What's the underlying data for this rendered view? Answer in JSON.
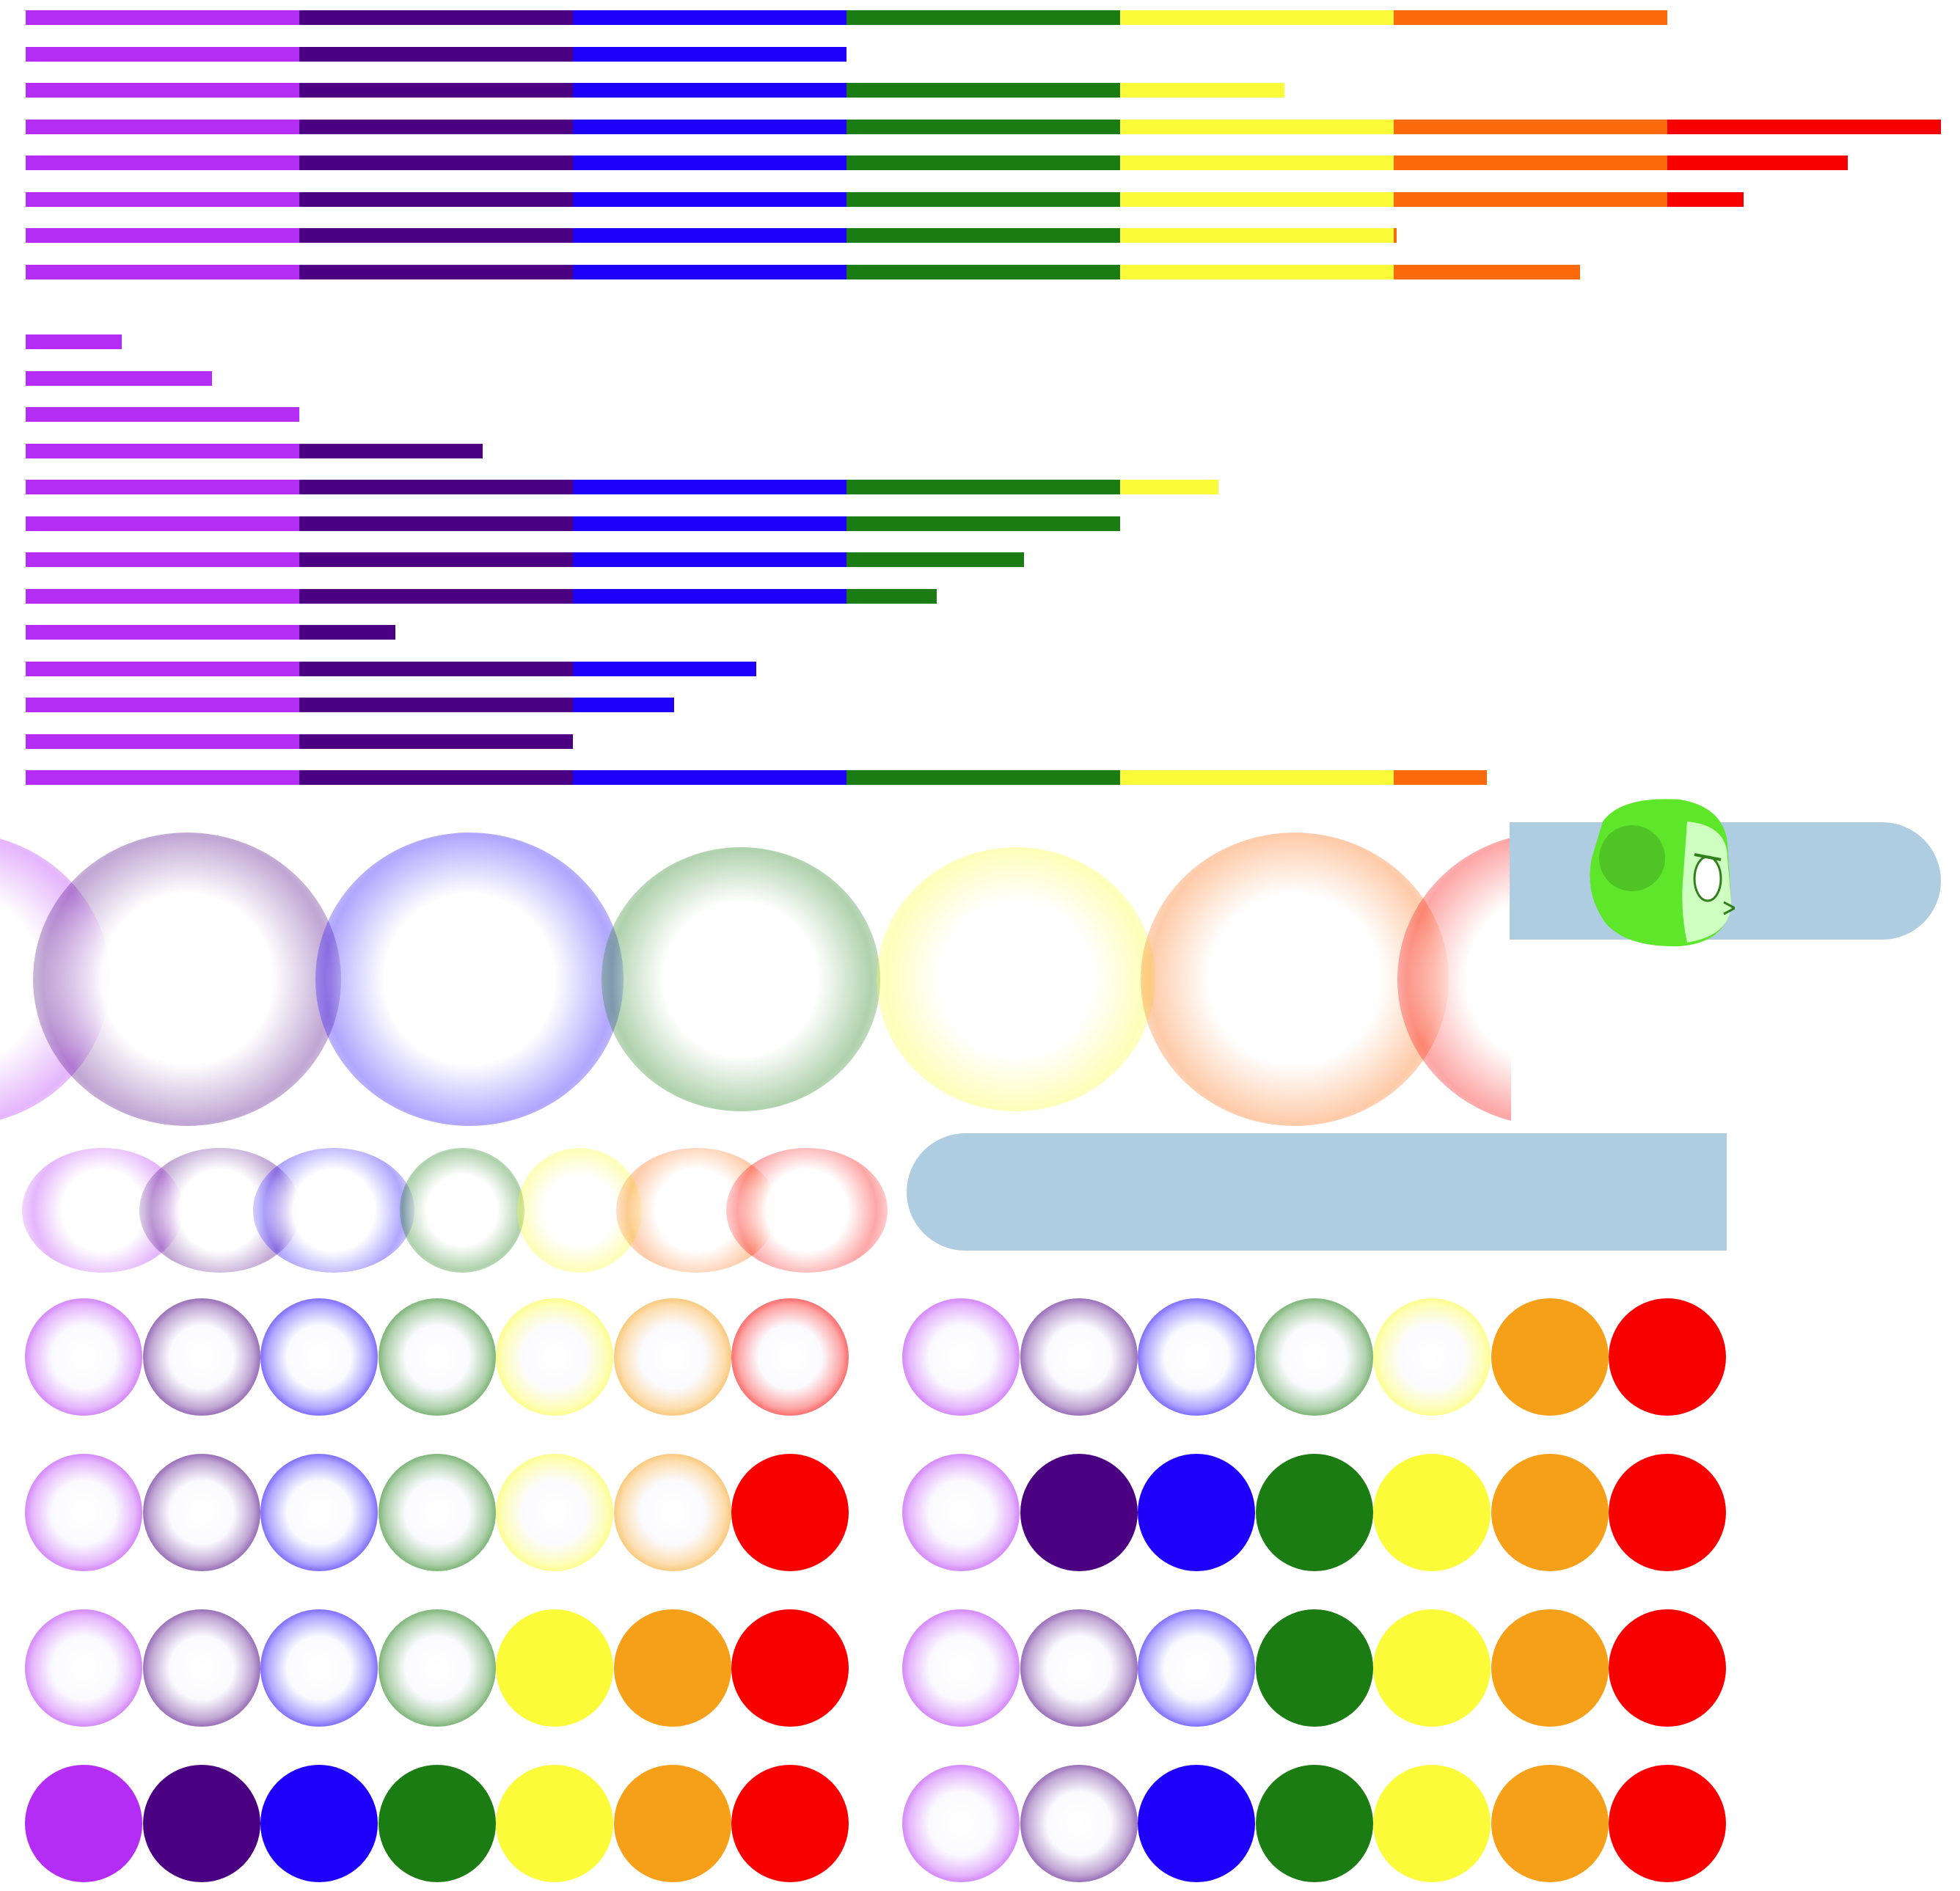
{
  "palette": {
    "purple": "#B42DF5",
    "indigo": "#4B0082",
    "blue": "#1E00FA",
    "green": "#1C7C14",
    "yellow": "#FBFB3A",
    "orange": "#FB6A0A",
    "red": "#F80000",
    "orange_orb": "#F6A01A",
    "pill": "#AFCDE1",
    "sprite_green": "#5EE62A",
    "sprite_face": "#CFFFC0"
  },
  "bar_group_1": {
    "segment_fraction_full": 1,
    "rows": [
      6,
      3,
      4.6,
      7.0,
      6.66,
      6.28,
      5.01,
      5.68
    ]
  },
  "bar_group_2": {
    "rows": [
      0.35,
      0.68,
      1.0,
      1.67,
      4.36,
      4.0,
      3.65,
      3.33,
      1.35,
      2.67,
      2.37,
      2.0,
      5.34
    ]
  },
  "large_glow_row": {
    "colors": [
      "purple",
      "indigo",
      "blue",
      "green",
      "yellow",
      "orange",
      "red"
    ]
  },
  "small_glow_row": {
    "colors": [
      "purple",
      "indigo",
      "blue",
      "green",
      "yellow",
      "orange",
      "red"
    ]
  },
  "orb_grids": {
    "colors": [
      "purple",
      "indigo",
      "blue",
      "green",
      "yellow",
      "orange_orb",
      "red"
    ],
    "left": [
      [
        1,
        1,
        1,
        1,
        1,
        1,
        1
      ],
      [
        1,
        1,
        1,
        1,
        1,
        1,
        0
      ],
      [
        1,
        1,
        1,
        1,
        0,
        0,
        0
      ],
      [
        0,
        0,
        0,
        0,
        0,
        0,
        0
      ]
    ],
    "right": [
      [
        1,
        1,
        1,
        1,
        1,
        0,
        0
      ],
      [
        1,
        0,
        0,
        0,
        0,
        0,
        0
      ],
      [
        1,
        1,
        1,
        0,
        0,
        0,
        0
      ],
      [
        1,
        1,
        0,
        0,
        0,
        0,
        0
      ]
    ]
  },
  "sprite": {
    "icon": "green-character-head-icon"
  }
}
